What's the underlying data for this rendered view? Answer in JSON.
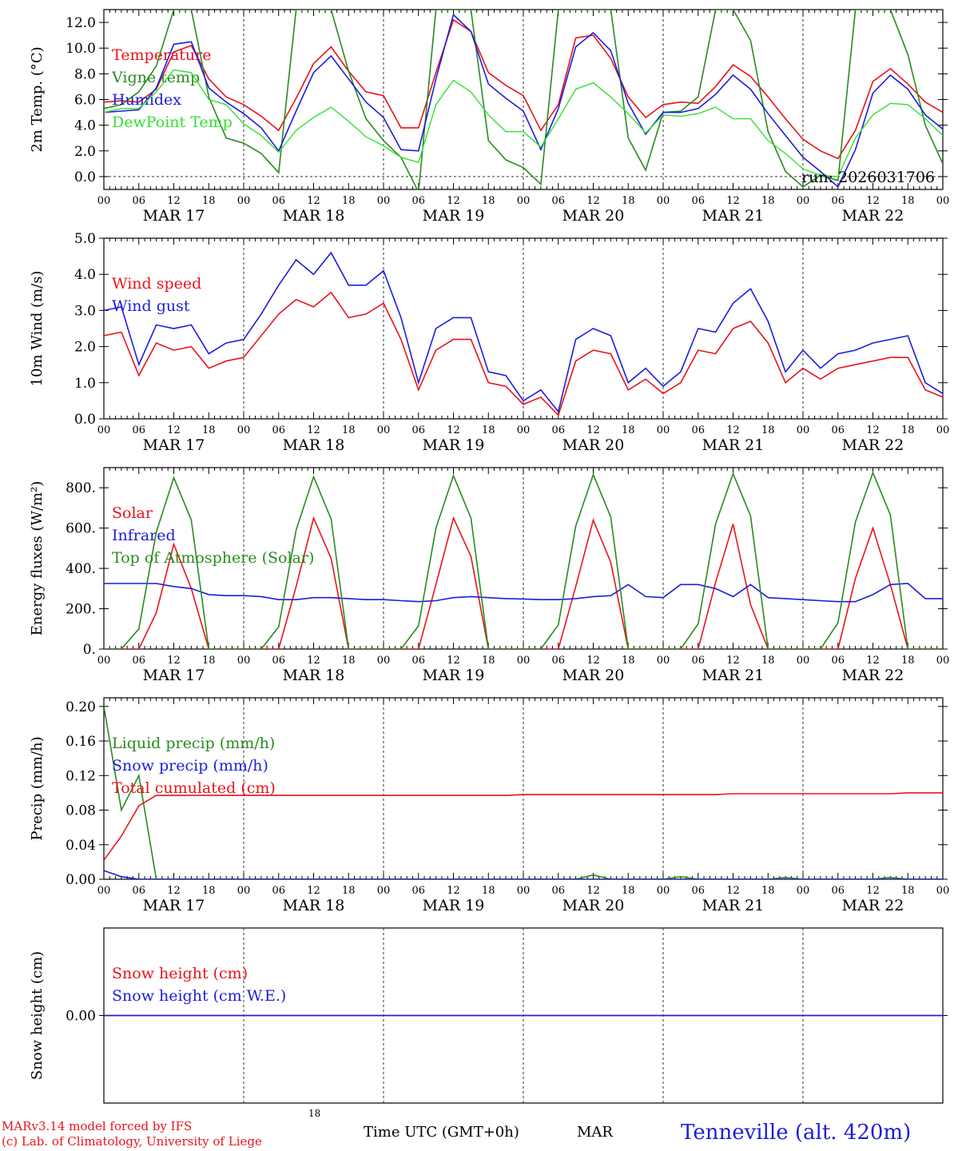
{
  "colors": {
    "red": "#e8141b",
    "blue": "#1d1ddb",
    "green": "#2a8a1f",
    "lightgreen": "#33e033",
    "axis": "#000000"
  },
  "x_axis": {
    "hour_ticks": [
      "00",
      "06",
      "12",
      "18"
    ],
    "final_tick": "00",
    "day_labels": [
      "MAR 17",
      "MAR 18",
      "MAR 19",
      "MAR 20",
      "MAR 21",
      "MAR 22"
    ]
  },
  "footer": {
    "model": "MARv3.14 model forced by IFS",
    "copyright": "(c) Lab. of Climatology, University of Liege",
    "xlabel": "Time UTC (GMT+0h)",
    "month": "MAR",
    "small_tick": "18",
    "station": "Tenneville (alt. 420m)"
  },
  "chart_data": [
    {
      "type": "line",
      "ylabel": "2m Temp. (°C)",
      "ylim": [
        -1,
        13
      ],
      "yticks": [
        0,
        2,
        4,
        6,
        8,
        10,
        12
      ],
      "ytick_labels": [
        "0.0",
        "2.0",
        "4.0",
        "6.0",
        "8.0",
        "10.0",
        "12.0"
      ],
      "zero_line": true,
      "annotation": "run: 2026031706",
      "x": [
        0,
        3,
        6,
        9,
        12,
        15,
        18,
        21,
        24,
        27,
        30,
        33,
        36,
        39,
        42,
        45,
        48,
        51,
        54,
        57,
        60,
        63,
        66,
        69,
        72,
        75,
        78,
        81,
        84,
        87,
        90,
        93,
        96,
        99,
        102,
        105,
        108,
        111,
        114,
        117,
        120,
        123,
        126,
        129,
        132,
        135,
        138,
        141,
        144
      ],
      "series": [
        {
          "name": "Temperature",
          "color": "red",
          "values": [
            5.8,
            5.9,
            5.8,
            6.8,
            9.7,
            10.2,
            7.6,
            6.2,
            5.6,
            4.7,
            3.6,
            6.1,
            8.8,
            10.1,
            8.2,
            6.6,
            6.3,
            3.8,
            3.8,
            8.1,
            12.2,
            11.3,
            8.1,
            7.1,
            6.3,
            3.6,
            5.6,
            10.8,
            11.0,
            9.2,
            6.2,
            4.6,
            5.6,
            5.8,
            5.7,
            7.0,
            8.7,
            7.8,
            6.2,
            4.5,
            2.9,
            2.0,
            1.4,
            3.6,
            7.4,
            8.4,
            7.2,
            5.8,
            5.0
          ]
        },
        {
          "name": "Vigne temp",
          "color": "green",
          "values": [
            5.3,
            5.6,
            6.6,
            8.6,
            13.0,
            13.0,
            6.2,
            3.0,
            2.6,
            1.8,
            0.3,
            13.0,
            13.0,
            13.0,
            8.2,
            4.5,
            2.8,
            1.5,
            -1.2,
            13.0,
            13.0,
            13.0,
            2.8,
            1.3,
            0.7,
            -0.6,
            13.0,
            13.0,
            13.0,
            13.0,
            3.0,
            0.5,
            5.0,
            5.1,
            6.2,
            13.0,
            13.0,
            10.6,
            3.5,
            0.4,
            -0.8,
            0.1,
            -0.3,
            13.0,
            13.0,
            13.0,
            9.5,
            4.0,
            1.0
          ]
        },
        {
          "name": "Humidex",
          "color": "blue",
          "values": [
            5.0,
            5.1,
            5.2,
            6.9,
            10.3,
            10.5,
            6.9,
            5.8,
            4.9,
            3.8,
            2.0,
            5.1,
            8.1,
            9.4,
            7.6,
            5.8,
            4.6,
            2.1,
            2.0,
            7.6,
            12.6,
            11.3,
            7.2,
            6.1,
            5.1,
            2.1,
            5.3,
            10.1,
            11.2,
            9.8,
            5.7,
            3.3,
            5.0,
            5.0,
            5.3,
            6.4,
            7.9,
            6.8,
            4.9,
            3.2,
            1.5,
            0.4,
            -0.8,
            2.1,
            6.5,
            7.9,
            6.8,
            4.8,
            3.7
          ]
        },
        {
          "name": "DewPoint Temp",
          "color": "lightgreen",
          "values": [
            5.0,
            5.3,
            5.3,
            6.6,
            8.3,
            8.1,
            6.0,
            5.6,
            4.1,
            3.2,
            1.9,
            3.6,
            4.6,
            5.4,
            4.3,
            3.1,
            2.4,
            1.5,
            1.1,
            5.6,
            7.5,
            6.6,
            4.8,
            3.5,
            3.5,
            2.3,
            4.5,
            6.8,
            7.3,
            6.2,
            4.9,
            3.4,
            4.8,
            4.7,
            4.9,
            5.4,
            4.5,
            4.5,
            2.8,
            1.8,
            0.6,
            0.1,
            0.0,
            3.0,
            4.8,
            5.7,
            5.6,
            4.5,
            3.2
          ]
        }
      ]
    },
    {
      "type": "line",
      "ylabel": "10m Wind (m/s)",
      "ylim": [
        0,
        5
      ],
      "yticks": [
        0,
        1,
        2,
        3,
        4,
        5
      ],
      "ytick_labels": [
        "0.0",
        "1.0",
        "2.0",
        "3.0",
        "4.0",
        "5.0"
      ],
      "x": [
        0,
        3,
        6,
        9,
        12,
        15,
        18,
        21,
        24,
        27,
        30,
        33,
        36,
        39,
        42,
        45,
        48,
        51,
        54,
        57,
        60,
        63,
        66,
        69,
        72,
        75,
        78,
        81,
        84,
        87,
        90,
        93,
        96,
        99,
        102,
        105,
        108,
        111,
        114,
        117,
        120,
        123,
        126,
        129,
        132,
        135,
        138,
        141,
        144
      ],
      "series": [
        {
          "name": "Wind speed",
          "color": "red",
          "values": [
            2.3,
            2.4,
            1.2,
            2.1,
            1.9,
            2.0,
            1.4,
            1.6,
            1.7,
            2.3,
            2.9,
            3.3,
            3.1,
            3.5,
            2.8,
            2.9,
            3.2,
            2.2,
            0.8,
            1.9,
            2.2,
            2.2,
            1.0,
            0.9,
            0.4,
            0.6,
            0.1,
            1.6,
            1.9,
            1.8,
            0.8,
            1.1,
            0.7,
            1.0,
            1.9,
            1.8,
            2.5,
            2.7,
            2.1,
            1.0,
            1.4,
            1.1,
            1.4,
            1.5,
            1.6,
            1.7,
            1.7,
            0.8,
            0.6
          ]
        },
        {
          "name": "Wind gust",
          "color": "blue",
          "values": [
            3.0,
            3.1,
            1.5,
            2.6,
            2.5,
            2.6,
            1.8,
            2.1,
            2.2,
            2.9,
            3.7,
            4.4,
            4.0,
            4.6,
            3.7,
            3.7,
            4.1,
            2.8,
            1.0,
            2.5,
            2.8,
            2.8,
            1.3,
            1.2,
            0.5,
            0.8,
            0.2,
            2.2,
            2.5,
            2.3,
            1.0,
            1.4,
            0.9,
            1.3,
            2.5,
            2.4,
            3.2,
            3.6,
            2.7,
            1.3,
            1.9,
            1.4,
            1.8,
            1.9,
            2.1,
            2.2,
            2.3,
            1.0,
            0.7
          ]
        }
      ]
    },
    {
      "type": "line",
      "ylabel": "Energy fluxes (W/m²)",
      "ylim": [
        0,
        900
      ],
      "yticks": [
        0,
        200,
        400,
        600,
        800
      ],
      "ytick_labels": [
        "0.",
        "200.",
        "400.",
        "600.",
        "800."
      ],
      "x": [
        0,
        3,
        6,
        9,
        12,
        15,
        18,
        21,
        24,
        27,
        30,
        33,
        36,
        39,
        42,
        45,
        48,
        51,
        54,
        57,
        60,
        63,
        66,
        69,
        72,
        75,
        78,
        81,
        84,
        87,
        90,
        93,
        96,
        99,
        102,
        105,
        108,
        111,
        114,
        117,
        120,
        123,
        126,
        129,
        132,
        135,
        138,
        141,
        144
      ],
      "series": [
        {
          "name": "Solar",
          "color": "red",
          "values": [
            0,
            0,
            0,
            180,
            520,
            300,
            0,
            0,
            0,
            0,
            0,
            310,
            650,
            450,
            0,
            0,
            0,
            0,
            0,
            320,
            650,
            460,
            0,
            0,
            0,
            0,
            0,
            310,
            640,
            430,
            0,
            0,
            0,
            0,
            0,
            330,
            620,
            220,
            0,
            0,
            0,
            0,
            0,
            350,
            600,
            320,
            0,
            0,
            0
          ]
        },
        {
          "name": "Infrared",
          "color": "blue",
          "values": [
            325,
            325,
            325,
            325,
            310,
            300,
            270,
            265,
            265,
            260,
            245,
            245,
            255,
            255,
            250,
            245,
            245,
            240,
            235,
            240,
            255,
            260,
            255,
            250,
            248,
            245,
            245,
            250,
            260,
            265,
            320,
            260,
            255,
            320,
            320,
            300,
            260,
            320,
            255,
            250,
            245,
            240,
            235,
            235,
            270,
            320,
            325,
            250,
            250
          ]
        },
        {
          "name": "Top of Atmosphere (Solar)",
          "color": "green",
          "values": [
            0,
            0,
            100,
            580,
            850,
            640,
            0,
            0,
            0,
            0,
            110,
            590,
            855,
            645,
            0,
            0,
            0,
            0,
            115,
            600,
            860,
            650,
            0,
            0,
            0,
            0,
            120,
            610,
            865,
            655,
            0,
            0,
            0,
            0,
            125,
            620,
            870,
            660,
            0,
            0,
            0,
            0,
            130,
            630,
            875,
            665,
            0,
            0,
            0
          ]
        }
      ]
    },
    {
      "type": "line",
      "ylabel": "Precip (mm/h)",
      "ylim": [
        0,
        0.21
      ],
      "yticks": [
        0,
        0.04,
        0.08,
        0.12,
        0.16,
        0.2
      ],
      "ytick_labels": [
        "0.00",
        "0.04",
        "0.08",
        "0.12",
        "0.16",
        "0.20"
      ],
      "x": [
        0,
        3,
        6,
        9,
        12,
        15,
        18,
        21,
        24,
        27,
        30,
        33,
        36,
        39,
        42,
        45,
        48,
        51,
        54,
        57,
        60,
        63,
        66,
        69,
        72,
        75,
        78,
        81,
        84,
        87,
        90,
        93,
        96,
        99,
        102,
        105,
        108,
        111,
        114,
        117,
        120,
        123,
        126,
        129,
        132,
        135,
        138,
        141,
        144
      ],
      "series": [
        {
          "name": "Liquid precip (mm/h)",
          "color": "green",
          "values": [
            0.2,
            0.08,
            0.12,
            0.0,
            0,
            0,
            0,
            0,
            0,
            0,
            0,
            0,
            0,
            0,
            0,
            0,
            0,
            0,
            0,
            0,
            0,
            0,
            0,
            0,
            0,
            0,
            0,
            0,
            0.005,
            0,
            0,
            0,
            0,
            0.003,
            0,
            0,
            0,
            0,
            0,
            0.002,
            0,
            0,
            0,
            0,
            0,
            0.002,
            0,
            0,
            0
          ]
        },
        {
          "name": "Snow precip (mm/h)",
          "color": "blue",
          "values": [
            0.01,
            0.003,
            0,
            0,
            0,
            0,
            0,
            0,
            0,
            0,
            0,
            0,
            0,
            0,
            0,
            0,
            0,
            0,
            0,
            0,
            0,
            0,
            0,
            0,
            0,
            0,
            0,
            0,
            0,
            0,
            0,
            0,
            0,
            0,
            0,
            0,
            0,
            0,
            0,
            0,
            0,
            0,
            0,
            0,
            0,
            0,
            0,
            0,
            0
          ]
        },
        {
          "name": "Total cumulated (cm)",
          "color": "red",
          "values": [
            0.022,
            0.05,
            0.085,
            0.097,
            0.097,
            0.097,
            0.097,
            0.097,
            0.097,
            0.097,
            0.097,
            0.097,
            0.097,
            0.097,
            0.097,
            0.097,
            0.097,
            0.097,
            0.097,
            0.097,
            0.097,
            0.097,
            0.097,
            0.097,
            0.098,
            0.098,
            0.098,
            0.098,
            0.098,
            0.098,
            0.098,
            0.098,
            0.098,
            0.098,
            0.098,
            0.098,
            0.099,
            0.099,
            0.099,
            0.099,
            0.099,
            0.099,
            0.099,
            0.099,
            0.099,
            0.099,
            0.1,
            0.1,
            0.1
          ]
        }
      ]
    },
    {
      "type": "line",
      "ylabel": "Snow height (cm)",
      "ylim": [
        -1,
        1
      ],
      "yticks": [
        0
      ],
      "ytick_labels": [
        "0.00"
      ],
      "no_x_ticks": true,
      "x": [
        0,
        144
      ],
      "series": [
        {
          "name": "Snow height (cm)",
          "color": "red",
          "values": [
            0,
            0
          ]
        },
        {
          "name": "Snow height (cm W.E.)",
          "color": "blue",
          "values": [
            0,
            0
          ]
        }
      ]
    }
  ]
}
